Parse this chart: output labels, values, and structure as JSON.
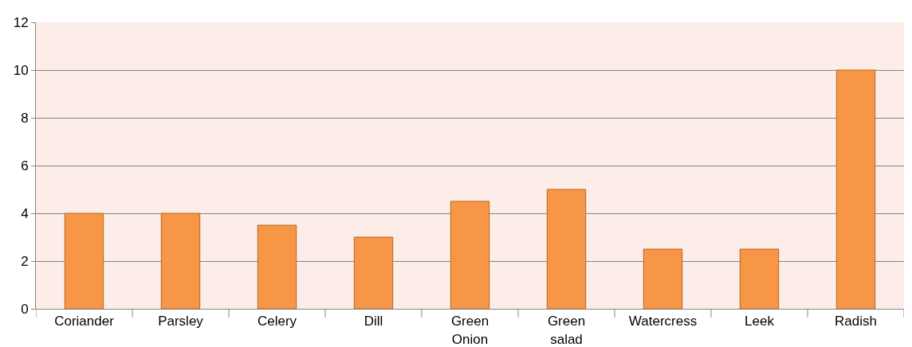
{
  "chart_data": {
    "type": "bar",
    "categories": [
      "Coriander",
      "Parsley",
      "Celery",
      "Dill",
      "Green Onion",
      "Green salad",
      "Watercress",
      "Leek",
      "Radish"
    ],
    "values": [
      4,
      4,
      3.5,
      3,
      4.5,
      5,
      2.5,
      2.5,
      10
    ],
    "color": "#f79646",
    "ylim": [
      0,
      12
    ],
    "yticks": [
      0,
      2,
      4,
      6,
      8,
      10,
      12
    ],
    "grid": "y"
  }
}
